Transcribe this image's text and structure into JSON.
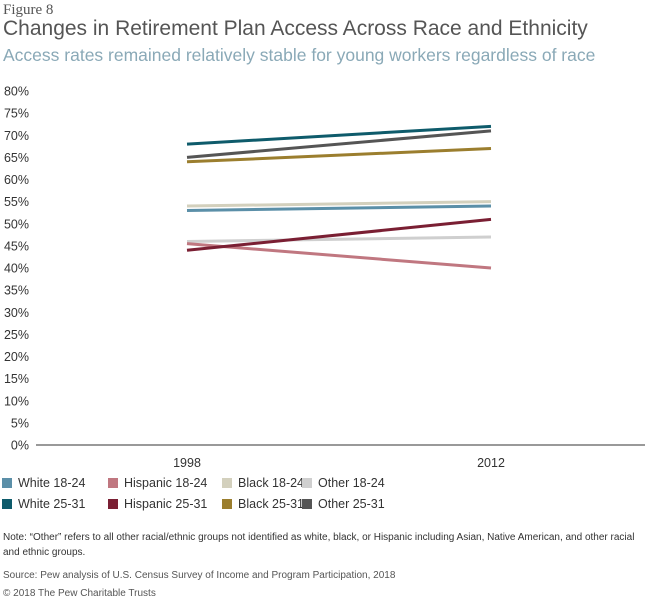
{
  "figure_label": "Figure 8",
  "title": "Changes in Retirement Plan Access Across Race and Ethnicity",
  "subtitle": "Access rates remained relatively stable for young workers regardless of race",
  "chart_data": {
    "type": "line",
    "x": [
      "1998",
      "2012"
    ],
    "ylim": [
      0,
      80
    ],
    "yticks": [
      "0%",
      "5%",
      "10%",
      "15%",
      "20%",
      "25%",
      "30%",
      "35%",
      "40%",
      "45%",
      "50%",
      "55%",
      "60%",
      "65%",
      "70%",
      "75%",
      "80%"
    ],
    "grid": false,
    "series": [
      {
        "name": "White 18-24",
        "values": [
          53,
          54
        ],
        "color": "#5b8fa8"
      },
      {
        "name": "Hispanic 18-24",
        "values": [
          45.5,
          40
        ],
        "color": "#c07780"
      },
      {
        "name": "Black 18-24",
        "values": [
          54,
          55
        ],
        "color": "#d3d0bd"
      },
      {
        "name": "Other 18-24",
        "values": [
          46,
          47
        ],
        "color": "#cfcfcf"
      },
      {
        "name": "White 25-31",
        "values": [
          68,
          72
        ],
        "color": "#0e5b6b"
      },
      {
        "name": "Hispanic 25-31",
        "values": [
          44,
          51
        ],
        "color": "#7a1f33"
      },
      {
        "name": "Black 25-31",
        "values": [
          64,
          67
        ],
        "color": "#9b7e2e"
      },
      {
        "name": "Other 25-31",
        "values": [
          65,
          71
        ],
        "color": "#555555"
      }
    ]
  },
  "note": "Note: “Other” refers to all other racial/ethnic groups not identified as white, black, or Hispanic including Asian, Native American, and other racial and ethnic groups.",
  "source": "Source: Pew analysis of U.S. Census Survey of Income and Program Participation, 2018",
  "copyright": "© 2018 The Pew Charitable Trusts"
}
